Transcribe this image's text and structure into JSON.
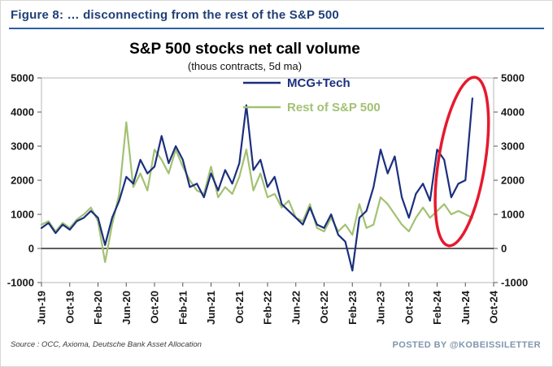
{
  "header": {
    "title": "Figure 8: … disconnecting from the rest of the S&P 500"
  },
  "footer": {
    "source": "Source : OCC, Axioma, Deutsche Bank Asset Allocation",
    "posted_by": "POSTED BY @KOBEISSILETTER"
  },
  "colors": {
    "header_text": "#1f3f77",
    "header_rule": "#2e5fa3",
    "plot_border": "#b7b7b7",
    "zero_axis": "#000000",
    "tick": "#555555",
    "posted_by": "#8096ad"
  },
  "chart_data": {
    "type": "line",
    "title": "S&P 500 stocks net call volume",
    "subtitle": "(thous contracts, 5d ma)",
    "ylim": [
      -1000,
      5000
    ],
    "ytick_step": 1000,
    "ytick_labels": [
      "-1000",
      "0",
      "1000",
      "2000",
      "3000",
      "4000",
      "5000"
    ],
    "y_axis_sides": "both",
    "grid": false,
    "legend_position": "top-right-inside",
    "x_total_months": 64,
    "x_tick_every_months": 4,
    "x_tick_labels": [
      "Jun-19",
      "Oct-19",
      "Feb-20",
      "Jun-20",
      "Oct-20",
      "Feb-21",
      "Jun-21",
      "Oct-21",
      "Feb-22",
      "Jun-22",
      "Oct-22",
      "Feb-23",
      "Jun-23",
      "Oct-23",
      "Feb-24",
      "Jun-24",
      "Oct-24"
    ],
    "series": [
      {
        "name": "MCG+Tech",
        "color": "#1b2f7e",
        "start_month": "Jun-19",
        "interval": "monthly",
        "values": [
          600,
          750,
          450,
          700,
          550,
          800,
          900,
          1100,
          900,
          100,
          900,
          1400,
          2100,
          1900,
          2600,
          2200,
          2400,
          3300,
          2500,
          3000,
          2600,
          1800,
          1900,
          1500,
          2200,
          1700,
          2300,
          1900,
          2500,
          4200,
          2300,
          2600,
          1800,
          2100,
          1300,
          1100,
          900,
          700,
          1200,
          700,
          600,
          1000,
          400,
          200,
          -650,
          900,
          1100,
          1800,
          2900,
          2200,
          2700,
          1500,
          900,
          1600,
          1900,
          1400,
          2900,
          2600,
          1500,
          1900,
          2000,
          4400
        ]
      },
      {
        "name": "Rest of S&P 500",
        "color": "#a3c173",
        "start_month": "Jun-19",
        "interval": "monthly",
        "values": [
          700,
          800,
          500,
          750,
          600,
          850,
          1000,
          1200,
          800,
          -400,
          700,
          1600,
          3700,
          1800,
          2200,
          1700,
          2900,
          2600,
          2200,
          2900,
          2400,
          2000,
          1700,
          1600,
          2400,
          1500,
          1800,
          1600,
          2100,
          2900,
          1700,
          2200,
          1500,
          1600,
          1200,
          1400,
          900,
          800,
          1300,
          600,
          500,
          900,
          500,
          700,
          400,
          1300,
          600,
          700,
          1500,
          1300,
          1000,
          700,
          500,
          900,
          1200,
          900,
          1100,
          1300,
          1000,
          1100,
          1000,
          900
        ]
      }
    ],
    "annotation": {
      "shape": "ellipse",
      "purpose": "highlights final MCG+Tech call-volume spike vs flat Rest of S&P 500",
      "month_center": 59.5,
      "value_center": 2550,
      "rx_months": 3.3,
      "ry_values": 2500,
      "rotate_deg": 9,
      "color": "#e6192e",
      "stroke_width": 3.5
    }
  }
}
